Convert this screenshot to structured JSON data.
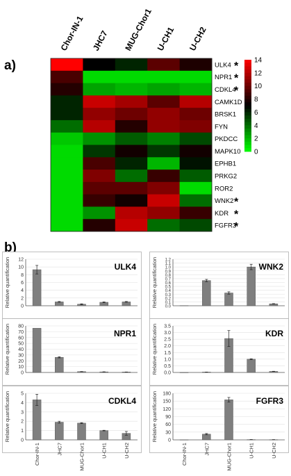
{
  "panel_labels": {
    "a": "a)",
    "b": "b)"
  },
  "chart_data": [
    {
      "type": "heatmap",
      "panel": "a)",
      "columns": [
        "Chor-IN-1",
        "JHC7",
        "MUG-Chor1",
        "U-CH1",
        "U-CH2"
      ],
      "rows": [
        "ULK4",
        "NPR1",
        "CDKL4",
        "CAMK1D",
        "BRSK1",
        "FYN",
        "PKDCC",
        "MAPK10",
        "EPHB1",
        "PRKG2",
        "ROR2",
        "WNK2",
        "KDR",
        "FGFR3"
      ],
      "significance_marker": "*",
      "significant_rows": [
        "ULK4",
        "NPR1",
        "CDKL4",
        "WNK2",
        "KDR",
        "FGFR3"
      ],
      "colorbar": {
        "min": 0,
        "max": 14,
        "ticks": [
          "0",
          "2",
          "4",
          "6",
          "8",
          "10",
          "12",
          "14"
        ],
        "low_color": "#00ff00",
        "mid_color": "#000000",
        "high_color": "#ff0000"
      },
      "values": [
        [
          14.0,
          7.0,
          6.0,
          9.5,
          7.8
        ],
        [
          9.0,
          1.0,
          1.0,
          1.0,
          1.0
        ],
        [
          8.0,
          2.5,
          2.0,
          2.5,
          2.0
        ],
        [
          6.0,
          12.5,
          11.5,
          9.5,
          12.0
        ],
        [
          6.0,
          11.0,
          10.0,
          11.0,
          10.0
        ],
        [
          4.0,
          12.0,
          8.0,
          11.0,
          10.5
        ],
        [
          1.5,
          3.0,
          4.5,
          3.5,
          5.0
        ],
        [
          1.0,
          5.5,
          7.5,
          5.5,
          7.5
        ],
        [
          1.0,
          9.0,
          6.0,
          2.0,
          6.5
        ],
        [
          1.0,
          10.5,
          4.0,
          8.5,
          4.5
        ],
        [
          1.0,
          9.5,
          9.5,
          10.5,
          1.0
        ],
        [
          1.0,
          8.5,
          7.5,
          12.5,
          4.0
        ],
        [
          1.0,
          3.0,
          12.0,
          11.0,
          8.5
        ],
        [
          1.0,
          8.0,
          12.5,
          4.0,
          5.0
        ]
      ]
    },
    {
      "type": "bar",
      "panel": "b)",
      "title": "ULK4",
      "ylabel": "Relative quantification",
      "categories": [
        "Chor-IN-1",
        "JHC7",
        "MUG-Chor1",
        "U-CH1",
        "U-CH2"
      ],
      "values": [
        9.3,
        1.0,
        0.4,
        0.9,
        1.0
      ],
      "errors": [
        1.1,
        0.1,
        0.1,
        0.1,
        0.1
      ],
      "ylim": [
        0,
        12
      ],
      "yticks": [
        "0",
        "2",
        "4",
        "6",
        "8",
        "10",
        "12"
      ],
      "show_xlabels": false
    },
    {
      "type": "bar",
      "panel": "b)",
      "title": "WNK2",
      "ylabel": "Relative quantification",
      "categories": [
        "Chor-IN-1",
        "JHC7",
        "MUG-Chor1",
        "U-CH1",
        "U-CH2"
      ],
      "values": [
        0.005,
        0.65,
        0.33,
        1.0,
        0.05
      ],
      "errors": [
        0,
        0.03,
        0.03,
        0.07,
        0.005
      ],
      "ylim": [
        0,
        1.2
      ],
      "yticks": [
        "0.0",
        "0.1",
        "0.2",
        "0.3",
        "0.4",
        "0.5",
        "0.6",
        "0.7",
        "0.8",
        "0.9",
        "1.0",
        "1.1",
        "1.2"
      ],
      "show_xlabels": false
    },
    {
      "type": "bar",
      "panel": "b)",
      "title": "NPR1",
      "ylabel": "Relative quantification",
      "categories": [
        "Chor-IN-1",
        "JHC7",
        "MUG-Chor1",
        "U-CH1",
        "U-CH2"
      ],
      "values": [
        76,
        26,
        1.5,
        1.0,
        0.8
      ],
      "errors": [
        0,
        1,
        0.2,
        0.2,
        0.1
      ],
      "ylim": [
        0,
        80
      ],
      "yticks": [
        "0",
        "10",
        "20",
        "30",
        "40",
        "50",
        "60",
        "70",
        "80"
      ],
      "show_xlabels": false
    },
    {
      "type": "bar",
      "panel": "b)",
      "title": "KDR",
      "ylabel": "Relative quantification",
      "categories": [
        "Chor-IN-1",
        "JHC7",
        "MUG-Chor1",
        "U-CH1",
        "U-CH2"
      ],
      "values": [
        0.005,
        0.03,
        2.55,
        1.0,
        0.08
      ],
      "errors": [
        0,
        0.005,
        0.6,
        0.03,
        0.01
      ],
      "ylim": [
        0,
        3.5
      ],
      "yticks": [
        "0.0",
        "0.5",
        "1.0",
        "1.5",
        "2.0",
        "2.5",
        "3.0",
        "3.5"
      ],
      "show_xlabels": false
    },
    {
      "type": "bar",
      "panel": "b)",
      "title": "CDKL4",
      "ylabel": "Relative quantification",
      "categories": [
        "Chor-IN-1",
        "JHC7",
        "MUG-Chor1",
        "U-CH1",
        "U-CH2"
      ],
      "values": [
        4.3,
        1.9,
        1.8,
        1.0,
        0.7
      ],
      "errors": [
        0.6,
        0.1,
        0.05,
        0.03,
        0.2
      ],
      "ylim": [
        0,
        5
      ],
      "yticks": [
        "0",
        "1",
        "2",
        "3",
        "4",
        "5"
      ],
      "show_xlabels": true
    },
    {
      "type": "bar",
      "panel": "b)",
      "title": "FGFR3",
      "ylabel": "Relative quantification",
      "categories": [
        "Chor-IN-1",
        "JHC7",
        "MUG-Chor1",
        "U-CH1",
        "U-CH2"
      ],
      "values": [
        0.5,
        22,
        155,
        1.0,
        0.8
      ],
      "errors": [
        0,
        2.5,
        9,
        0.1,
        0.1
      ],
      "ylim": [
        0,
        180
      ],
      "yticks": [
        "0",
        "30",
        "60",
        "90",
        "120",
        "150",
        "180"
      ],
      "show_xlabels": true
    }
  ]
}
